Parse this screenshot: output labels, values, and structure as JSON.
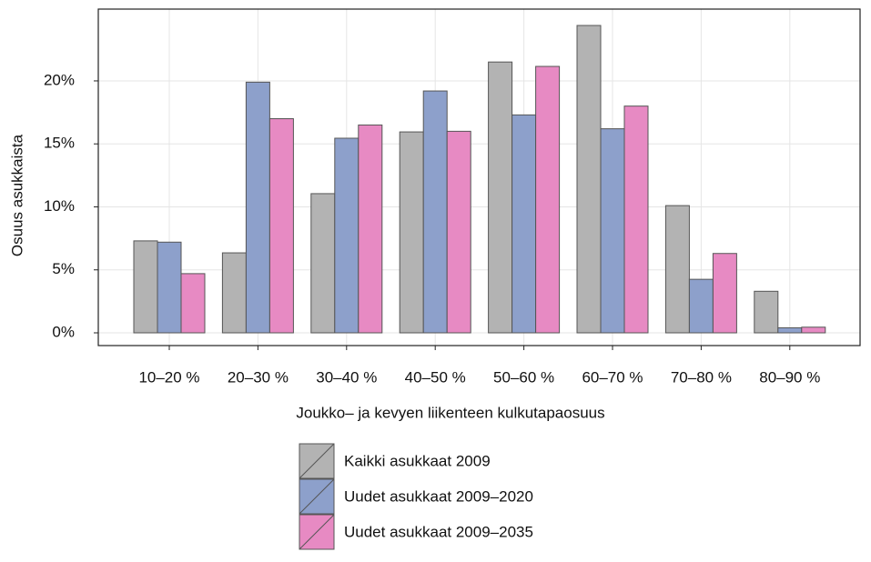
{
  "chart_data": {
    "type": "bar",
    "x_label": "Joukko– ja kevyen liikenteen kulkutapaosuus",
    "y_label": "Osuus asukkaista",
    "categories": [
      "10–20 %",
      "20–30 %",
      "30–40 %",
      "40–50 %",
      "50–60 %",
      "60–70 %",
      "70–80 %",
      "80–90 %"
    ],
    "series": [
      {
        "name": "Kaikki asukkaat 2009",
        "color": "#b3b3b3",
        "values": [
          7.3,
          6.35,
          11.05,
          15.95,
          21.5,
          24.4,
          10.1,
          3.3
        ]
      },
      {
        "name": "Uudet asukkaat 2009–2020",
        "color": "#8da0cb",
        "values": [
          7.2,
          19.9,
          15.45,
          19.2,
          17.3,
          16.2,
          4.25,
          0.4
        ]
      },
      {
        "name": "Uudet asukkaat 2009–2035",
        "color": "#e78ac3",
        "values": [
          4.7,
          17.0,
          16.5,
          16.0,
          21.15,
          18.0,
          6.3,
          0.45
        ]
      }
    ],
    "ylim": [
      -1.01,
      25.7
    ],
    "yticks": [
      {
        "value": 0,
        "label": "0%"
      },
      {
        "value": 5,
        "label": "5%"
      },
      {
        "value": 10,
        "label": "10%"
      },
      {
        "value": 15,
        "label": "15%"
      },
      {
        "value": 20,
        "label": "20%"
      }
    ],
    "grid": true,
    "legend": "bottom"
  }
}
